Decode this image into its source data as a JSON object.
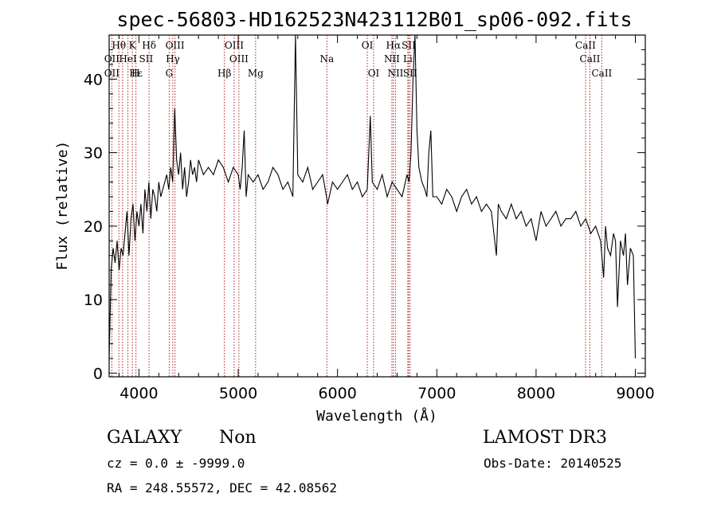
{
  "chart_data": {
    "type": "line",
    "title": "spec-56803-HD162523N423112B01_sp06-092.fits",
    "xlabel": "Wavelength (Å)",
    "ylabel": "Flux (relative)",
    "xlim": [
      3700,
      9100
    ],
    "ylim": [
      -0.5,
      46
    ],
    "xticks": [
      4000,
      5000,
      6000,
      7000,
      8000,
      9000
    ],
    "yticks": [
      0,
      10,
      20,
      30,
      40
    ],
    "line_color": "#000000",
    "marker_color": "#b22222",
    "series": [
      {
        "x": [
          3700,
          3720,
          3740,
          3760,
          3780,
          3800,
          3820,
          3840,
          3860,
          3880,
          3900,
          3920,
          3940,
          3960,
          3980,
          4000,
          4020,
          4040,
          4060,
          4080,
          4100,
          4120,
          4140,
          4160,
          4180,
          4200,
          4220,
          4240,
          4260,
          4280,
          4300,
          4320,
          4340,
          4360,
          4380,
          4400,
          4420,
          4440,
          4460,
          4480,
          4500,
          4520,
          4540,
          4560,
          4580,
          4600,
          4650,
          4700,
          4750,
          4800,
          4850,
          4900,
          4950,
          5000,
          5020,
          5040,
          5060,
          5080,
          5100,
          5150,
          5200,
          5250,
          5300,
          5350,
          5400,
          5450,
          5500,
          5550,
          5577,
          5600,
          5650,
          5700,
          5750,
          5800,
          5850,
          5890,
          5900,
          5950,
          6000,
          6050,
          6100,
          6150,
          6200,
          6250,
          6300,
          6330,
          6350,
          6400,
          6450,
          6500,
          6550,
          6600,
          6650,
          6700,
          6720,
          6740,
          6760,
          6780,
          6800,
          6820,
          6850,
          6880,
          6900,
          6920,
          6940,
          6960,
          7000,
          7050,
          7100,
          7150,
          7200,
          7250,
          7300,
          7350,
          7400,
          7450,
          7500,
          7550,
          7600,
          7620,
          7650,
          7700,
          7750,
          7800,
          7850,
          7900,
          7950,
          8000,
          8050,
          8100,
          8150,
          8200,
          8250,
          8300,
          8350,
          8400,
          8450,
          8500,
          8550,
          8600,
          8650,
          8680,
          8700,
          8720,
          8750,
          8780,
          8800,
          8820,
          8850,
          8880,
          8900,
          8920,
          8950,
          8980,
          9000
        ],
        "y": [
          2,
          14,
          17,
          15,
          18,
          14,
          17,
          16,
          19,
          22,
          16,
          21,
          23,
          18,
          22,
          20,
          23,
          19,
          25,
          22,
          26,
          21,
          25,
          24,
          22,
          26,
          24,
          25,
          26,
          27,
          25,
          28,
          26,
          36,
          29,
          27,
          30,
          25,
          28,
          24,
          26,
          29,
          27,
          28,
          26,
          29,
          27,
          28,
          27,
          29,
          28,
          26,
          28,
          27,
          25,
          28,
          33,
          24,
          27,
          26,
          27,
          25,
          26,
          28,
          27,
          25,
          26,
          24,
          46,
          27,
          26,
          28,
          25,
          26,
          27,
          24,
          23,
          26,
          25,
          26,
          27,
          25,
          26,
          24,
          25,
          35,
          26,
          25,
          27,
          24,
          26,
          25,
          24,
          27,
          26,
          30,
          40,
          46,
          33,
          28,
          26,
          25,
          24,
          30,
          33,
          24,
          24,
          23,
          25,
          24,
          22,
          24,
          25,
          23,
          24,
          22,
          23,
          22,
          16,
          23,
          22,
          21,
          23,
          21,
          22,
          20,
          21,
          18,
          22,
          20,
          21,
          22,
          20,
          21,
          21,
          22,
          20,
          21,
          19,
          20,
          18,
          13,
          20,
          17,
          16,
          19,
          18,
          9,
          18,
          16,
          19,
          12,
          17,
          16,
          2
        ]
      }
    ],
    "line_markers": [
      {
        "name": "OII",
        "x": 3727,
        "row": 1
      },
      {
        "name": "OII",
        "x": 3727,
        "row": 2
      },
      {
        "name": "Hθ",
        "x": 3798,
        "row": 0
      },
      {
        "name": "HeI",
        "x": 3889,
        "row": 1
      },
      {
        "name": "Hε",
        "x": 3970,
        "row": 2
      },
      {
        "name": "K",
        "x": 3934,
        "row": 0
      },
      {
        "name": "H",
        "x": 3968,
        "row": 2
      },
      {
        "name": "Hδ",
        "x": 4102,
        "row": 0
      },
      {
        "name": "SII",
        "x": 4072,
        "row": 1
      },
      {
        "name": "OIII",
        "x": 4363,
        "row": 0
      },
      {
        "name": "Hγ",
        "x": 4341,
        "row": 1
      },
      {
        "name": "G",
        "x": 4305,
        "row": 2
      },
      {
        "name": "OIII",
        "x": 4959,
        "row": 0
      },
      {
        "name": "OIII",
        "x": 5007,
        "row": 1
      },
      {
        "name": "Hβ",
        "x": 4861,
        "row": 2
      },
      {
        "name": "Mg",
        "x": 5175,
        "row": 2
      },
      {
        "name": "Na",
        "x": 5893,
        "row": 1
      },
      {
        "name": "OI",
        "x": 6300,
        "row": 0
      },
      {
        "name": "OI",
        "x": 6364,
        "row": 2
      },
      {
        "name": "Hα",
        "x": 6563,
        "row": 0
      },
      {
        "name": "NII",
        "x": 6548,
        "row": 1
      },
      {
        "name": "NII",
        "x": 6584,
        "row": 2
      },
      {
        "name": "SII",
        "x": 6717,
        "row": 0
      },
      {
        "name": "Li",
        "x": 6708,
        "row": 1
      },
      {
        "name": "SII",
        "x": 6731,
        "row": 2
      },
      {
        "name": "CaII",
        "x": 8498,
        "row": 0
      },
      {
        "name": "CaII",
        "x": 8542,
        "row": 1
      },
      {
        "name": "CaII",
        "x": 8662,
        "row": 2
      }
    ],
    "marker_lines": [
      3727,
      3798,
      3835,
      3889,
      3934,
      3970,
      4102,
      4305,
      4341,
      4363,
      4861,
      4959,
      5007,
      5175,
      5893,
      6300,
      6364,
      6548,
      6563,
      6584,
      6708,
      6717,
      6731,
      8498,
      8542,
      8662
    ]
  },
  "info": {
    "class": "GALAXY",
    "subclass": "Non",
    "survey": "LAMOST DR3",
    "cz": "cz = 0.0 ± -9999.0",
    "obs_date": "Obs-Date: 20140525",
    "coords": "RA = 248.55572, DEC =  42.08562"
  }
}
